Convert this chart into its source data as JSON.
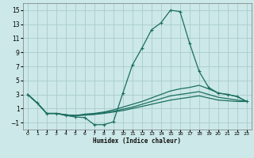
{
  "xlabel": "Humidex (Indice chaleur)",
  "bg_color": "#cce8e8",
  "grid_color": "#aacccc",
  "line_color": "#1a6e60",
  "xlim": [
    -0.5,
    23.5
  ],
  "ylim": [
    -2.0,
    16.0
  ],
  "xticks": [
    0,
    1,
    2,
    3,
    4,
    5,
    6,
    7,
    8,
    9,
    10,
    11,
    12,
    13,
    14,
    15,
    16,
    17,
    18,
    19,
    20,
    21,
    22,
    23
  ],
  "yticks": [
    -1,
    1,
    3,
    5,
    7,
    9,
    11,
    13,
    15
  ],
  "curve1_x": [
    0,
    1,
    2,
    3,
    4,
    5,
    6,
    7,
    8,
    9,
    10,
    11,
    12,
    13,
    14,
    15,
    16,
    17,
    18,
    19,
    20,
    21,
    22,
    23
  ],
  "curve1_y": [
    3.0,
    1.8,
    0.3,
    0.3,
    0.0,
    -0.2,
    -0.3,
    -1.3,
    -1.3,
    -0.9,
    3.2,
    7.2,
    9.6,
    12.2,
    13.2,
    15.0,
    14.8,
    10.3,
    6.3,
    4.0,
    3.2,
    3.0,
    2.7,
    2.0
  ],
  "curve2_x": [
    0,
    1,
    2,
    3,
    4,
    5,
    6,
    7,
    8,
    9,
    10,
    11,
    12,
    13,
    14,
    15,
    16,
    17,
    18,
    19,
    20,
    21,
    22,
    23
  ],
  "curve2_y": [
    3.0,
    1.8,
    0.3,
    0.3,
    0.1,
    0.0,
    0.2,
    0.3,
    0.5,
    0.8,
    1.2,
    1.6,
    2.0,
    2.5,
    3.0,
    3.5,
    3.8,
    4.0,
    4.3,
    3.8,
    3.2,
    3.0,
    2.7,
    2.0
  ],
  "curve3_x": [
    0,
    1,
    2,
    3,
    4,
    5,
    6,
    7,
    8,
    9,
    10,
    11,
    12,
    13,
    14,
    15,
    16,
    17,
    18,
    19,
    20,
    21,
    22,
    23
  ],
  "curve3_y": [
    3.0,
    1.8,
    0.3,
    0.3,
    0.1,
    0.0,
    0.1,
    0.2,
    0.4,
    0.6,
    0.9,
    1.2,
    1.6,
    2.0,
    2.4,
    2.8,
    3.0,
    3.2,
    3.4,
    3.0,
    2.6,
    2.4,
    2.2,
    2.0
  ],
  "curve4_x": [
    0,
    1,
    2,
    3,
    4,
    5,
    6,
    7,
    8,
    9,
    10,
    11,
    12,
    13,
    14,
    15,
    16,
    17,
    18,
    19,
    20,
    21,
    22,
    23
  ],
  "curve4_y": [
    3.0,
    1.8,
    0.3,
    0.3,
    0.1,
    0.0,
    0.05,
    0.15,
    0.3,
    0.5,
    0.7,
    1.0,
    1.3,
    1.6,
    1.9,
    2.2,
    2.4,
    2.6,
    2.8,
    2.5,
    2.2,
    2.1,
    2.0,
    2.0
  ]
}
